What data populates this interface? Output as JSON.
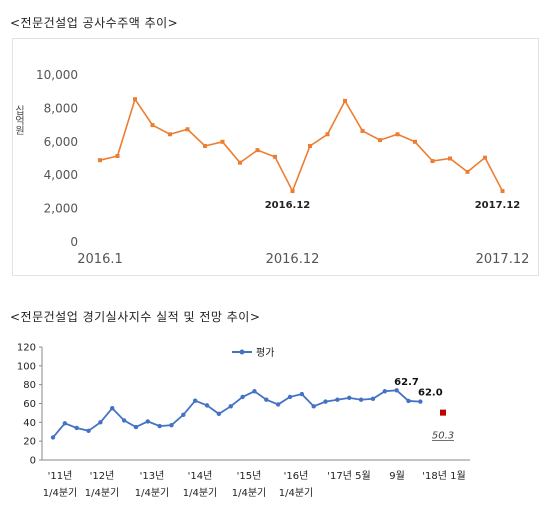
{
  "chart_data": [
    {
      "type": "line",
      "title": "<전문건설업 공사수주액 추이>",
      "ylabel": "십억원",
      "ylim": [
        0,
        10000
      ],
      "yticks": [
        "0",
        "2,000",
        "4,000",
        "6,000",
        "8,000",
        "10,000"
      ],
      "x_tick_labels": [
        "2016.1",
        "2016.12",
        "2017.12"
      ],
      "grid": false,
      "color": "#ED7D31",
      "series": [
        {
          "values": [
            4900,
            5150,
            8550,
            7000,
            6450,
            6750,
            5750,
            6000,
            4750,
            5500,
            5100,
            3050,
            5750,
            6450,
            8450,
            6650,
            6100,
            6450,
            6000,
            4850,
            5000,
            4200,
            5050,
            3050
          ]
        }
      ],
      "annotations": [
        {
          "text": "2016.12",
          "index": 11
        },
        {
          "text": "2017.12",
          "index": 23
        }
      ]
    },
    {
      "type": "line",
      "title": "<전문건설업 경기실사지수 실적 및 전망 추이>",
      "ylim": [
        0,
        120
      ],
      "yticks": [
        "0",
        "20",
        "40",
        "60",
        "80",
        "100",
        "120"
      ],
      "grid": false,
      "color": "#4472C4",
      "legend": "top-center",
      "x_tick_labels": [
        {
          "line1": "'11년",
          "line2": "1/4분기"
        },
        {
          "line1": "'12년",
          "line2": "1/4분기"
        },
        {
          "line1": "'13년",
          "line2": "1/4분기"
        },
        {
          "line1": "'14년",
          "line2": "1/4분기"
        },
        {
          "line1": "'15년",
          "line2": "1/4분기"
        },
        {
          "line1": "'16년",
          "line2": "1/4분기"
        },
        {
          "line1": "'17년 5월",
          "line2": ""
        },
        {
          "line1": "9월",
          "line2": ""
        },
        {
          "line1": "'18년 1월",
          "line2": ""
        }
      ],
      "series": [
        {
          "name": "평가",
          "values": [
            24,
            39,
            34,
            31,
            40,
            55,
            42,
            35,
            41,
            36,
            37,
            48,
            63,
            58,
            49,
            57,
            67,
            73,
            64,
            59,
            67,
            70,
            57,
            62,
            64,
            66,
            64,
            65,
            73,
            74,
            62.7,
            62.0
          ]
        }
      ],
      "forecast": {
        "value": 50.3,
        "label": "50.3",
        "color": "#C00000"
      },
      "data_labels": [
        "62.7",
        "62.0"
      ]
    }
  ]
}
